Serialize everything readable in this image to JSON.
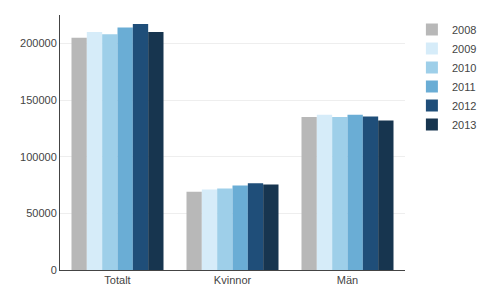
{
  "chart_data": {
    "type": "bar",
    "categories": [
      "Totalt",
      "Kvinnor",
      "Män"
    ],
    "series": [
      {
        "name": "2008",
        "color": "#b8b8b8",
        "values": [
          205000,
          69000,
          135000
        ]
      },
      {
        "name": "2009",
        "color": "#d6ecf9",
        "values": [
          210000,
          71000,
          137000
        ]
      },
      {
        "name": "2010",
        "color": "#9ecfe9",
        "values": [
          208000,
          72000,
          135000
        ]
      },
      {
        "name": "2011",
        "color": "#6aadd5",
        "values": [
          214000,
          74500,
          137000
        ]
      },
      {
        "name": "2012",
        "color": "#1f4e79",
        "values": [
          217000,
          76500,
          135500
        ]
      },
      {
        "name": "2013",
        "color": "#17354f",
        "values": [
          210000,
          75500,
          132000
        ]
      }
    ],
    "ylim": [
      0,
      225000
    ],
    "yticks": [
      0,
      50000,
      100000,
      150000,
      200000
    ],
    "grid": true,
    "legend": "right"
  }
}
